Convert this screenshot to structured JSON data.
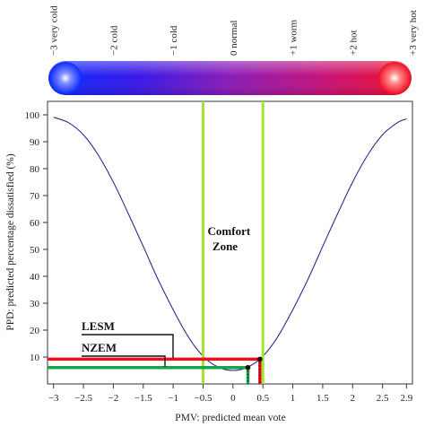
{
  "chart_data": {
    "type": "line",
    "xlabel": "PMV: predicted mean vote",
    "ylabel": "PPD: predicted percentage dissatisfied (%)",
    "xlim": [
      -3.1,
      3.0
    ],
    "ylim": [
      0,
      105
    ],
    "x_ticks": [
      -3,
      -2.5,
      -2,
      -1.5,
      -1,
      -0.5,
      0,
      0.5,
      1,
      1.5,
      2,
      2.5,
      2.9
    ],
    "y_ticks": [
      10,
      20,
      30,
      40,
      50,
      60,
      70,
      80,
      90,
      100
    ],
    "grid": false,
    "series": [
      {
        "color": "#2b2b8c",
        "x": [
          -3,
          -2.75,
          -2.5,
          -2.25,
          -2,
          -1.75,
          -1.5,
          -1.25,
          -1,
          -0.75,
          -0.5,
          -0.25,
          0,
          0.25,
          0.5,
          0.75,
          1,
          1.25,
          1.5,
          1.75,
          2,
          2.25,
          2.5,
          2.75,
          2.9
        ],
        "y": [
          99.1,
          97.1,
          92.6,
          85.0,
          75.0,
          63.3,
          51.1,
          38.7,
          27.6,
          17.6,
          10.3,
          6.3,
          5.0,
          6.3,
          10.3,
          17.6,
          27.6,
          38.7,
          51.1,
          63.3,
          75.0,
          85.0,
          92.6,
          97.1,
          98.5
        ]
      }
    ],
    "comfort_zone": {
      "x_min": -0.5,
      "x_max": 0.5,
      "color": "#a6e22e"
    },
    "annotations": [
      {
        "text": "Comfort Zone",
        "x": 0,
        "y": 48
      },
      {
        "text": "LESM",
        "x_point": 0.45,
        "y_point": 9.2,
        "color": "#e8131b"
      },
      {
        "text": "NZEM",
        "x_point": 0.25,
        "y_point": 6.1,
        "color": "#19a34a"
      }
    ]
  },
  "scale_bar": {
    "labels": [
      "−3 very cold",
      "−2 cold",
      "−1 cold",
      "0 normal",
      "+1 worm",
      "+2 hot",
      "+3 very hot"
    ],
    "label_values": [
      -3,
      -2,
      -1,
      0,
      1,
      2,
      3
    ],
    "gradient_colors": [
      "#0b2bff",
      "#3a18e6",
      "#8a1bb8",
      "#c4127a",
      "#ef0f28"
    ]
  }
}
